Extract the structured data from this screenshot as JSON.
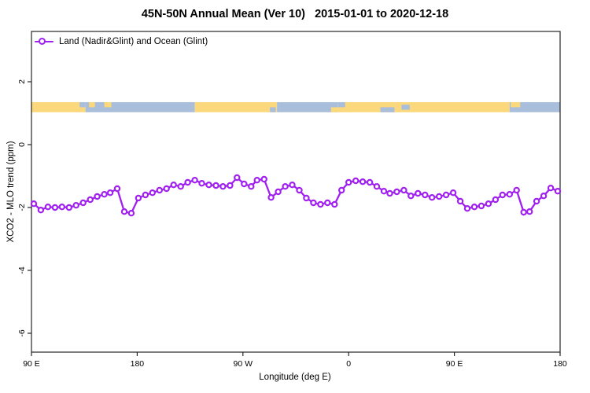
{
  "chart_data": {
    "type": "line",
    "title": "45N-50N Annual Mean (Ver 10)   2015-01-01 to 2020-12-18",
    "xlabel": "Longitude (deg E)",
    "ylabel": "XCO2 - MLO trend (ppm)",
    "xlim": [
      90,
      540
    ],
    "ylim": [
      -6.6,
      3.6
    ],
    "grid": false,
    "axis_color": "#262626",
    "legend_position": "top-left-inside",
    "x_ticks": [
      {
        "lon": 90,
        "label": "90 E"
      },
      {
        "lon": 180,
        "label": "180"
      },
      {
        "lon": 270,
        "label": "90 W"
      },
      {
        "lon": 360,
        "label": "0"
      },
      {
        "lon": 450,
        "label": "90 E"
      },
      {
        "lon": 540,
        "label": "180"
      }
    ],
    "y_ticks": [
      {
        "v": 2,
        "label": "2"
      },
      {
        "v": 0,
        "label": "0"
      },
      {
        "v": -2,
        "label": "-2"
      },
      {
        "v": -4,
        "label": "-4"
      },
      {
        "v": -6,
        "label": "-6"
      }
    ],
    "series": [
      {
        "name": "Land (Nadir&Glint) and Ocean (Glint)",
        "color": "#A020F0",
        "marker": "open-circle",
        "lon": [
          92,
          98,
          104,
          110,
          116,
          122,
          128,
          134,
          140,
          146,
          152,
          157,
          163,
          169,
          175,
          181,
          187,
          193,
          199,
          205,
          211,
          217,
          223,
          229,
          235,
          241,
          247,
          253,
          259,
          265,
          271,
          277,
          282,
          288,
          294,
          300,
          306,
          312,
          318,
          324,
          330,
          336,
          342,
          348,
          354,
          360,
          366,
          372,
          378,
          384,
          390,
          395,
          401,
          407,
          413,
          419,
          425,
          431,
          437,
          443,
          449,
          455,
          461,
          467,
          473,
          479,
          485,
          491,
          497,
          503,
          509,
          514,
          520,
          526,
          532,
          538
        ],
        "values": [
          -1.88,
          -2.08,
          -1.98,
          -2.0,
          -1.98,
          -2.0,
          -1.93,
          -1.85,
          -1.75,
          -1.65,
          -1.58,
          -1.53,
          -1.4,
          -2.13,
          -2.18,
          -1.7,
          -1.6,
          -1.53,
          -1.45,
          -1.4,
          -1.28,
          -1.33,
          -1.2,
          -1.13,
          -1.23,
          -1.28,
          -1.3,
          -1.33,
          -1.3,
          -1.05,
          -1.25,
          -1.33,
          -1.13,
          -1.1,
          -1.68,
          -1.5,
          -1.33,
          -1.28,
          -1.45,
          -1.7,
          -1.85,
          -1.9,
          -1.85,
          -1.9,
          -1.45,
          -1.2,
          -1.15,
          -1.18,
          -1.2,
          -1.33,
          -1.48,
          -1.55,
          -1.5,
          -1.45,
          -1.63,
          -1.55,
          -1.6,
          -1.68,
          -1.65,
          -1.6,
          -1.53,
          -1.8,
          -2.03,
          -1.98,
          -1.95,
          -1.88,
          -1.75,
          -1.6,
          -1.58,
          -1.45,
          -2.15,
          -2.13,
          -1.8,
          -1.63,
          -1.38,
          -1.48
        ]
      }
    ],
    "map_band": {
      "y_range": [
        1.03,
        1.35
      ],
      "land_color": "#FBD87B",
      "ocean_color": "#A9BEDB",
      "segments": [
        {
          "from": 90,
          "to": 136,
          "type": "land"
        },
        {
          "from": 136,
          "to": 229,
          "type": "ocean"
        },
        {
          "from": 229,
          "to": 299,
          "type": "land"
        },
        {
          "from": 299,
          "to": 351,
          "type": "ocean"
        },
        {
          "from": 351,
          "to": 497,
          "type": "land"
        },
        {
          "from": 497,
          "to": 540,
          "type": "ocean"
        }
      ],
      "patches": [
        {
          "from": 131,
          "to": 136,
          "part": "top",
          "type": "ocean"
        },
        {
          "from": 139,
          "to": 144,
          "part": "top",
          "type": "land"
        },
        {
          "from": 152,
          "to": 158,
          "part": "top",
          "type": "land"
        },
        {
          "from": 293,
          "to": 298,
          "part": "bottom",
          "type": "ocean"
        },
        {
          "from": 345,
          "to": 351,
          "part": "bottom",
          "type": "land"
        },
        {
          "from": 351,
          "to": 357,
          "part": "top",
          "type": "ocean"
        },
        {
          "from": 387,
          "to": 399,
          "part": "bottom",
          "type": "ocean"
        },
        {
          "from": 405,
          "to": 412,
          "part": "mid",
          "type": "ocean"
        },
        {
          "from": 498,
          "to": 506,
          "part": "top",
          "type": "land"
        }
      ]
    }
  }
}
